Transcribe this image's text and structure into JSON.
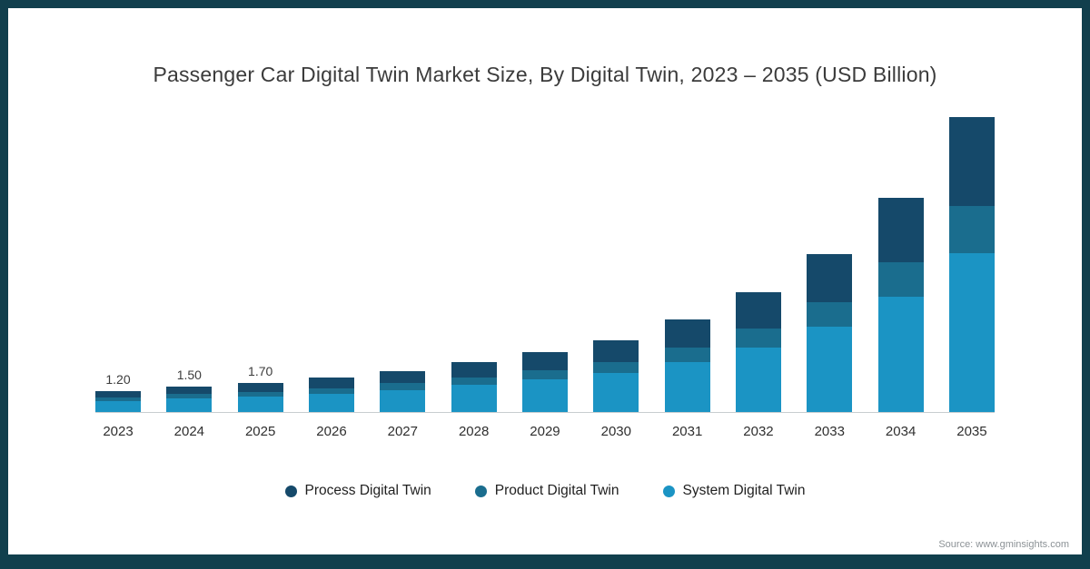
{
  "title": "Passenger Car Digital Twin Market Size, By Digital Twin, 2023 – 2035 (USD Billion)",
  "source": "Source: www.gminsights.com",
  "frame_color": "#113f4d",
  "chart_data": {
    "type": "bar",
    "stacked": true,
    "title": "Passenger Car Digital Twin Market Size, By Digital Twin, 2023 – 2035 (USD Billion)",
    "xlabel": "",
    "ylabel": "USD Billion",
    "ylim": [
      0,
      18
    ],
    "grid": false,
    "legend_position": "bottom",
    "categories": [
      "2023",
      "2024",
      "2025",
      "2026",
      "2027",
      "2028",
      "2029",
      "2030",
      "2031",
      "2032",
      "2033",
      "2034",
      "2035"
    ],
    "bar_labels": [
      "1.20",
      "1.50",
      "1.70",
      "",
      "",
      "",
      "",
      "",
      "",
      "",
      "",
      "",
      ""
    ],
    "totals": [
      1.2,
      1.5,
      1.7,
      2.0,
      2.4,
      2.9,
      3.5,
      4.2,
      5.4,
      7.0,
      9.2,
      12.5,
      17.2
    ],
    "series": [
      {
        "name": "Process Digital Twin",
        "color": "#15496a",
        "values": [
          0.36,
          0.45,
          0.51,
          0.6,
          0.72,
          0.87,
          1.05,
          1.26,
          1.62,
          2.1,
          2.76,
          3.75,
          5.16
        ]
      },
      {
        "name": "Product Digital Twin",
        "color": "#1a6d8e",
        "values": [
          0.19,
          0.24,
          0.27,
          0.32,
          0.38,
          0.46,
          0.56,
          0.67,
          0.86,
          1.12,
          1.47,
          2.0,
          2.75
        ]
      },
      {
        "name": "System Digital Twin",
        "color": "#1b94c4",
        "values": [
          0.65,
          0.81,
          0.92,
          1.08,
          1.3,
          1.57,
          1.89,
          2.27,
          2.92,
          3.78,
          4.97,
          6.75,
          9.29
        ]
      }
    ]
  }
}
